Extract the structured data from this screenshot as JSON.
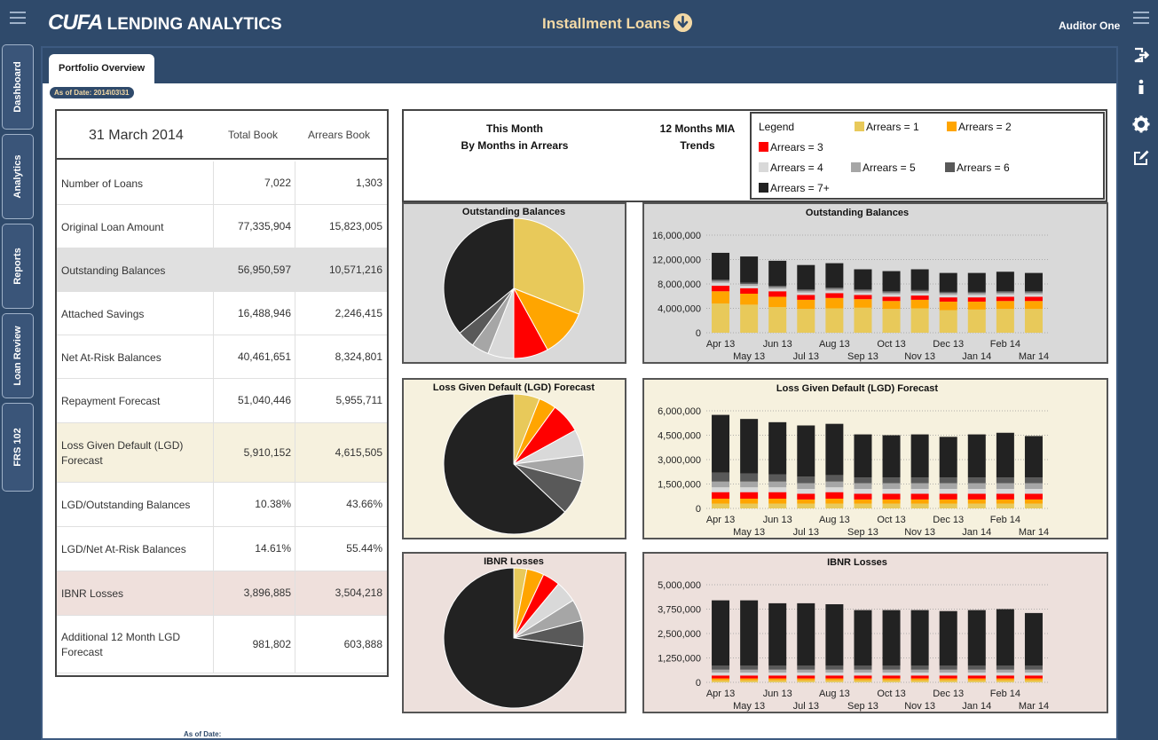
{
  "header": {
    "brand_cufa": "CUFA",
    "brand_rest": " LENDING ANALYTICS",
    "product": "Installment Loans",
    "user": "Auditor One"
  },
  "nav": {
    "left_tabs": [
      "Dashboard",
      "Analytics",
      "Reports",
      "Loan Review",
      "FRS 102"
    ]
  },
  "tab": {
    "label": "Portfolio Overview",
    "as_of": "As of Date: 2014\\03\\31"
  },
  "summary": {
    "date": "31 March 2014",
    "col1": "Total Book",
    "col2": "Arrears Book",
    "rows": [
      {
        "label": "Number of Loans",
        "total": "7,022",
        "arrears": "1,303"
      },
      {
        "label": "Original Loan Amount",
        "total": "77,335,904",
        "arrears": "15,823,005"
      },
      {
        "label": "Outstanding Balances",
        "total": "56,950,597",
        "arrears": "10,571,216"
      },
      {
        "label": "Attached Savings",
        "total": "16,488,946",
        "arrears": "2,246,415"
      },
      {
        "label": "Net At-Risk Balances",
        "total": "40,461,651",
        "arrears": "8,324,801"
      },
      {
        "label": "Repayment Forecast",
        "total": "51,040,446",
        "arrears": "5,955,711"
      },
      {
        "label": "Loss Given Default (LGD) Forecast",
        "total": "5,910,152",
        "arrears": "4,615,505"
      },
      {
        "label": "LGD/Outstanding Balances",
        "total": "10.38%",
        "arrears": "43.66%"
      },
      {
        "label": "LGD/Net At-Risk Balances",
        "total": "14.61%",
        "arrears": "55.44%"
      },
      {
        "label": "IBNR Losses",
        "total": "3,896,885",
        "arrears": "3,504,218"
      },
      {
        "label": "Additional 12 Month LGD Forecast",
        "total": "981,802",
        "arrears": "603,888"
      }
    ]
  },
  "headers": {
    "this_month_1": "This Month",
    "this_month_2": "By Months in Arrears",
    "trend_1": "12 Months MIA",
    "trend_2": "Trends"
  },
  "legend": {
    "title": "Legend",
    "items": [
      {
        "label": "Arrears = 1",
        "color": "#e8c95a"
      },
      {
        "label": "Arrears = 2",
        "color": "#ffa500"
      },
      {
        "label": "Arrears = 3",
        "color": "#ff0000"
      },
      {
        "label": "Arrears = 4",
        "color": "#d9d9d9"
      },
      {
        "label": "Arrears = 5",
        "color": "#a6a6a6"
      },
      {
        "label": "Arrears = 6",
        "color": "#595959"
      },
      {
        "label": "Arrears = 7+",
        "color": "#222222"
      }
    ]
  },
  "footer": {
    "as_of": "As of Date:"
  },
  "chart_data": [
    {
      "type": "pie",
      "title": "Outstanding Balances",
      "labels": [
        "Arrears = 1",
        "Arrears = 2",
        "Arrears = 3",
        "Arrears = 4",
        "Arrears = 5",
        "Arrears = 6",
        "Arrears = 7+"
      ],
      "values": [
        31,
        11,
        8,
        6,
        4,
        4,
        36
      ]
    },
    {
      "type": "bar",
      "stacked": true,
      "title": "Outstanding Balances",
      "categories": [
        "Apr 13",
        "May 13",
        "Jun 13",
        "Jul 13",
        "Aug 13",
        "Sep 13",
        "Oct 13",
        "Nov 13",
        "Dec 13",
        "Jan 14",
        "Feb 14",
        "Mar 14"
      ],
      "ylim": [
        0,
        16000000
      ],
      "yticks": [
        "16,000,000",
        "12,000,000",
        "8,000,000",
        "4,000,000",
        "0"
      ],
      "series": [
        {
          "name": "Arrears = 1",
          "values": [
            4800000,
            4600000,
            4200000,
            3900000,
            4000000,
            4100000,
            3900000,
            4000000,
            3700000,
            3800000,
            3900000,
            3900000
          ]
        },
        {
          "name": "Arrears = 2",
          "values": [
            2000000,
            1800000,
            1700000,
            1500000,
            1700000,
            1400000,
            1300000,
            1400000,
            1400000,
            1300000,
            1300000,
            1300000
          ]
        },
        {
          "name": "Arrears = 3",
          "values": [
            900000,
            900000,
            900000,
            800000,
            800000,
            700000,
            700000,
            700000,
            700000,
            700000,
            700000,
            700000
          ]
        },
        {
          "name": "Arrears = 4",
          "values": [
            500000,
            400000,
            400000,
            400000,
            400000,
            400000,
            400000,
            400000,
            400000,
            400000,
            400000,
            400000
          ]
        },
        {
          "name": "Arrears = 5",
          "values": [
            300000,
            300000,
            300000,
            300000,
            300000,
            300000,
            300000,
            300000,
            300000,
            300000,
            300000,
            300000
          ]
        },
        {
          "name": "Arrears = 6",
          "values": [
            200000,
            200000,
            200000,
            200000,
            200000,
            200000,
            200000,
            200000,
            200000,
            200000,
            200000,
            200000
          ]
        },
        {
          "name": "Arrears = 7+",
          "values": [
            4400000,
            4300000,
            4100000,
            4000000,
            4000000,
            3300000,
            3300000,
            3400000,
            3100000,
            3100000,
            3200000,
            3000000
          ]
        }
      ]
    },
    {
      "type": "pie",
      "title": "Loss Given Default (LGD) Forecast",
      "labels": [
        "Arrears = 1",
        "Arrears = 2",
        "Arrears = 3",
        "Arrears = 4",
        "Arrears = 5",
        "Arrears = 6",
        "Arrears = 7+"
      ],
      "values": [
        6,
        4,
        7,
        6,
        6,
        8,
        63
      ]
    },
    {
      "type": "bar",
      "stacked": true,
      "title": "Loss Given Default (LGD) Forecast",
      "categories": [
        "Apr 13",
        "May 13",
        "Jun 13",
        "Jul 13",
        "Aug 13",
        "Sep 13",
        "Oct 13",
        "Nov 13",
        "Dec 13",
        "Jan 14",
        "Feb 14",
        "Mar 14"
      ],
      "ylim": [
        0,
        6000000
      ],
      "yticks": [
        "6,000,000",
        "4,500,000",
        "3,000,000",
        "1,500,000",
        "0"
      ],
      "series": [
        {
          "name": "Arrears = 1",
          "values": [
            300000,
            300000,
            300000,
            300000,
            300000,
            300000,
            300000,
            300000,
            300000,
            300000,
            300000,
            300000
          ]
        },
        {
          "name": "Arrears = 2",
          "values": [
            300000,
            300000,
            300000,
            250000,
            300000,
            250000,
            250000,
            250000,
            250000,
            250000,
            250000,
            250000
          ]
        },
        {
          "name": "Arrears = 3",
          "values": [
            400000,
            400000,
            400000,
            350000,
            400000,
            350000,
            350000,
            350000,
            350000,
            350000,
            350000,
            350000
          ]
        },
        {
          "name": "Arrears = 4",
          "values": [
            300000,
            300000,
            300000,
            300000,
            300000,
            300000,
            300000,
            300000,
            300000,
            300000,
            300000,
            300000
          ]
        },
        {
          "name": "Arrears = 5",
          "values": [
            350000,
            350000,
            350000,
            350000,
            350000,
            350000,
            350000,
            350000,
            350000,
            350000,
            350000,
            350000
          ]
        },
        {
          "name": "Arrears = 6",
          "values": [
            550000,
            500000,
            450000,
            400000,
            400000,
            350000,
            350000,
            350000,
            350000,
            350000,
            350000,
            350000
          ]
        },
        {
          "name": "Arrears = 7+",
          "values": [
            3550000,
            3350000,
            3200000,
            3150000,
            3150000,
            2650000,
            2600000,
            2650000,
            2500000,
            2650000,
            2750000,
            2550000
          ]
        }
      ]
    },
    {
      "type": "pie",
      "title": "IBNR Losses",
      "labels": [
        "Arrears = 1",
        "Arrears = 2",
        "Arrears = 3",
        "Arrears = 4",
        "Arrears = 5",
        "Arrears = 6",
        "Arrears = 7+"
      ],
      "values": [
        3,
        4,
        4,
        5,
        5,
        6,
        73
      ]
    },
    {
      "type": "bar",
      "stacked": true,
      "title": "IBNR Losses",
      "categories": [
        "Apr 13",
        "May 13",
        "Jun 13",
        "Jul 13",
        "Aug 13",
        "Sep 13",
        "Oct 13",
        "Nov 13",
        "Dec 13",
        "Jan 14",
        "Feb 14",
        "Mar 14"
      ],
      "ylim": [
        0,
        5000000
      ],
      "yticks": [
        "5,000,000",
        "3,750,000",
        "2,500,000",
        "1,250,000",
        "0"
      ],
      "series": [
        {
          "name": "Arrears = 1",
          "values": [
            100000,
            100000,
            100000,
            100000,
            100000,
            100000,
            100000,
            100000,
            100000,
            100000,
            100000,
            100000
          ]
        },
        {
          "name": "Arrears = 2",
          "values": [
            100000,
            100000,
            100000,
            100000,
            100000,
            100000,
            100000,
            100000,
            100000,
            100000,
            100000,
            100000
          ]
        },
        {
          "name": "Arrears = 3",
          "values": [
            150000,
            150000,
            150000,
            150000,
            150000,
            150000,
            150000,
            150000,
            150000,
            150000,
            150000,
            150000
          ]
        },
        {
          "name": "Arrears = 4",
          "values": [
            150000,
            150000,
            150000,
            150000,
            150000,
            150000,
            150000,
            150000,
            150000,
            150000,
            150000,
            150000
          ]
        },
        {
          "name": "Arrears = 5",
          "values": [
            150000,
            150000,
            150000,
            150000,
            150000,
            150000,
            150000,
            150000,
            150000,
            150000,
            150000,
            150000
          ]
        },
        {
          "name": "Arrears = 6",
          "values": [
            200000,
            200000,
            200000,
            200000,
            200000,
            200000,
            200000,
            200000,
            200000,
            200000,
            200000,
            200000
          ]
        },
        {
          "name": "Arrears = 7+",
          "values": [
            3350000,
            3350000,
            3200000,
            3200000,
            3150000,
            2850000,
            2850000,
            2850000,
            2800000,
            2850000,
            2900000,
            2700000
          ]
        }
      ]
    }
  ]
}
